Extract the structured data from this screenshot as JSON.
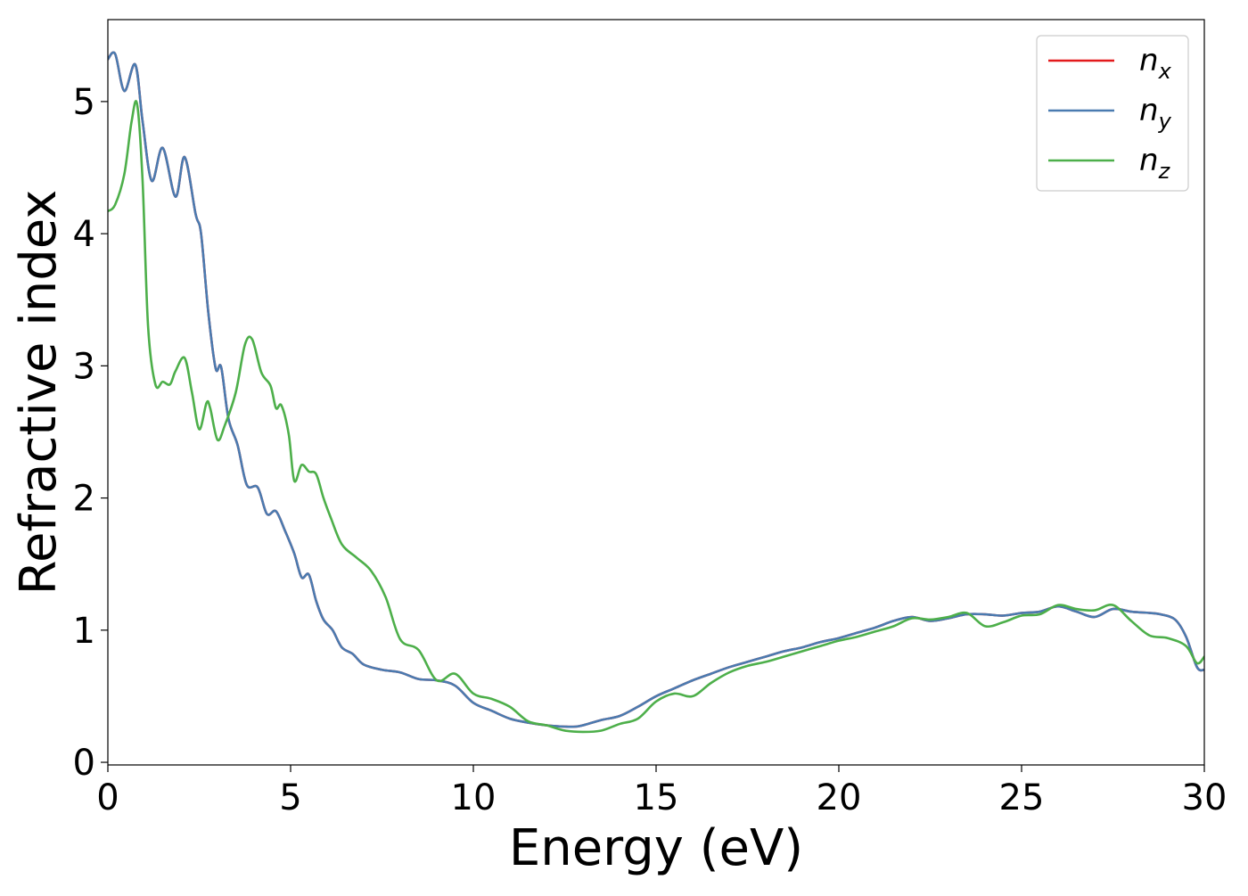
{
  "chart_data": {
    "type": "line",
    "title": "",
    "xlabel": "Energy (eV)",
    "ylabel": "Refractive index",
    "xlim": [
      0,
      30
    ],
    "ylim": [
      -0.02,
      5.62
    ],
    "xticks": [
      0,
      5,
      10,
      15,
      20,
      25,
      30
    ],
    "yticks": [
      0,
      1,
      2,
      3,
      4,
      5
    ],
    "grid": false,
    "legend_position": "top-right",
    "series": [
      {
        "name": "n_x",
        "label_main": "n",
        "label_sub": "x",
        "color": "#e31a1c",
        "x": [
          0,
          0.2,
          0.45,
          0.75,
          0.95,
          1.2,
          1.5,
          1.85,
          2.1,
          2.4,
          2.55,
          2.75,
          2.95,
          3.1,
          3.3,
          3.55,
          3.8,
          4.1,
          4.35,
          4.6,
          4.85,
          5.1,
          5.3,
          5.5,
          5.7,
          5.9,
          6.15,
          6.4,
          6.7,
          7.0,
          7.5,
          8.0,
          8.5,
          9.0,
          9.5,
          10.0,
          10.5,
          11.0,
          11.5,
          12.0,
          12.5,
          12.8,
          13.0,
          13.5,
          14.0,
          14.5,
          15.0,
          15.5,
          16.0,
          16.5,
          17.0,
          17.5,
          18.0,
          18.5,
          19.0,
          19.5,
          20.0,
          20.5,
          21.0,
          21.5,
          22.0,
          22.5,
          23.0,
          23.5,
          24.0,
          24.5,
          25.0,
          25.5,
          26.0,
          26.5,
          27.0,
          27.5,
          28.0,
          28.5,
          28.8,
          29.2,
          29.5,
          29.8,
          30.0
        ],
        "y": [
          5.32,
          5.36,
          5.08,
          5.28,
          4.85,
          4.4,
          4.65,
          4.28,
          4.58,
          4.15,
          4.0,
          3.4,
          2.98,
          2.99,
          2.6,
          2.4,
          2.1,
          2.08,
          1.88,
          1.9,
          1.75,
          1.58,
          1.4,
          1.42,
          1.22,
          1.08,
          1.0,
          0.87,
          0.82,
          0.74,
          0.7,
          0.68,
          0.63,
          0.62,
          0.58,
          0.45,
          0.39,
          0.33,
          0.3,
          0.28,
          0.27,
          0.27,
          0.28,
          0.32,
          0.35,
          0.42,
          0.5,
          0.56,
          0.62,
          0.67,
          0.72,
          0.76,
          0.8,
          0.84,
          0.87,
          0.91,
          0.94,
          0.98,
          1.02,
          1.07,
          1.1,
          1.07,
          1.09,
          1.12,
          1.12,
          1.11,
          1.13,
          1.14,
          1.18,
          1.14,
          1.1,
          1.16,
          1.14,
          1.13,
          1.12,
          1.08,
          0.95,
          0.72,
          0.7
        ]
      },
      {
        "name": "n_y",
        "label_main": "n",
        "label_sub": "y",
        "color": "#4a7bb0",
        "x": [
          0,
          0.2,
          0.45,
          0.75,
          0.95,
          1.2,
          1.5,
          1.85,
          2.1,
          2.4,
          2.55,
          2.75,
          2.95,
          3.1,
          3.3,
          3.55,
          3.8,
          4.1,
          4.35,
          4.6,
          4.85,
          5.1,
          5.3,
          5.5,
          5.7,
          5.9,
          6.15,
          6.4,
          6.7,
          7.0,
          7.5,
          8.0,
          8.5,
          9.0,
          9.5,
          10.0,
          10.5,
          11.0,
          11.5,
          12.0,
          12.5,
          12.8,
          13.0,
          13.5,
          14.0,
          14.5,
          15.0,
          15.5,
          16.0,
          16.5,
          17.0,
          17.5,
          18.0,
          18.5,
          19.0,
          19.5,
          20.0,
          20.5,
          21.0,
          21.5,
          22.0,
          22.5,
          23.0,
          23.5,
          24.0,
          24.5,
          25.0,
          25.5,
          26.0,
          26.5,
          27.0,
          27.5,
          28.0,
          28.5,
          28.8,
          29.2,
          29.5,
          29.8,
          30.0
        ],
        "y": [
          5.32,
          5.36,
          5.08,
          5.28,
          4.85,
          4.4,
          4.65,
          4.28,
          4.58,
          4.15,
          4.0,
          3.4,
          2.98,
          2.99,
          2.6,
          2.4,
          2.1,
          2.08,
          1.88,
          1.9,
          1.75,
          1.58,
          1.4,
          1.42,
          1.22,
          1.08,
          1.0,
          0.87,
          0.82,
          0.74,
          0.7,
          0.68,
          0.63,
          0.62,
          0.58,
          0.45,
          0.39,
          0.33,
          0.3,
          0.28,
          0.27,
          0.27,
          0.28,
          0.32,
          0.35,
          0.42,
          0.5,
          0.56,
          0.62,
          0.67,
          0.72,
          0.76,
          0.8,
          0.84,
          0.87,
          0.91,
          0.94,
          0.98,
          1.02,
          1.07,
          1.1,
          1.07,
          1.09,
          1.12,
          1.12,
          1.11,
          1.13,
          1.14,
          1.18,
          1.14,
          1.1,
          1.16,
          1.14,
          1.13,
          1.12,
          1.08,
          0.95,
          0.72,
          0.7
        ]
      },
      {
        "name": "n_z",
        "label_main": "n",
        "label_sub": "z",
        "color": "#4daf4a",
        "x": [
          0,
          0.2,
          0.45,
          0.65,
          0.8,
          0.95,
          1.1,
          1.3,
          1.5,
          1.7,
          1.85,
          2.1,
          2.3,
          2.5,
          2.7,
          2.8,
          3.0,
          3.2,
          3.5,
          3.75,
          3.95,
          4.2,
          4.45,
          4.6,
          4.75,
          4.95,
          5.1,
          5.3,
          5.5,
          5.7,
          5.9,
          6.1,
          6.4,
          6.8,
          7.2,
          7.6,
          8.0,
          8.5,
          9.0,
          9.5,
          10.0,
          10.5,
          11.0,
          11.5,
          12.0,
          12.5,
          13.0,
          13.5,
          14.0,
          14.5,
          15.0,
          15.5,
          16.0,
          16.5,
          17.0,
          17.5,
          18.0,
          18.5,
          19.0,
          19.5,
          20.0,
          20.5,
          21.0,
          21.5,
          22.0,
          22.5,
          23.0,
          23.5,
          24.0,
          24.5,
          25.0,
          25.5,
          26.0,
          26.5,
          27.0,
          27.5,
          28.0,
          28.5,
          29.0,
          29.5,
          29.8,
          30.0
        ],
        "y": [
          4.17,
          4.22,
          4.45,
          4.85,
          4.98,
          4.4,
          3.3,
          2.86,
          2.88,
          2.86,
          2.96,
          3.06,
          2.8,
          2.52,
          2.72,
          2.68,
          2.44,
          2.55,
          2.8,
          3.16,
          3.2,
          2.95,
          2.85,
          2.68,
          2.7,
          2.48,
          2.13,
          2.25,
          2.2,
          2.18,
          2.0,
          1.85,
          1.65,
          1.55,
          1.45,
          1.25,
          0.93,
          0.85,
          0.62,
          0.67,
          0.52,
          0.48,
          0.42,
          0.31,
          0.28,
          0.24,
          0.23,
          0.24,
          0.29,
          0.33,
          0.46,
          0.52,
          0.5,
          0.6,
          0.68,
          0.73,
          0.76,
          0.8,
          0.84,
          0.88,
          0.92,
          0.95,
          0.99,
          1.03,
          1.09,
          1.08,
          1.1,
          1.13,
          1.03,
          1.06,
          1.11,
          1.12,
          1.19,
          1.16,
          1.15,
          1.19,
          1.07,
          0.96,
          0.94,
          0.88,
          0.75,
          0.8
        ]
      }
    ]
  }
}
